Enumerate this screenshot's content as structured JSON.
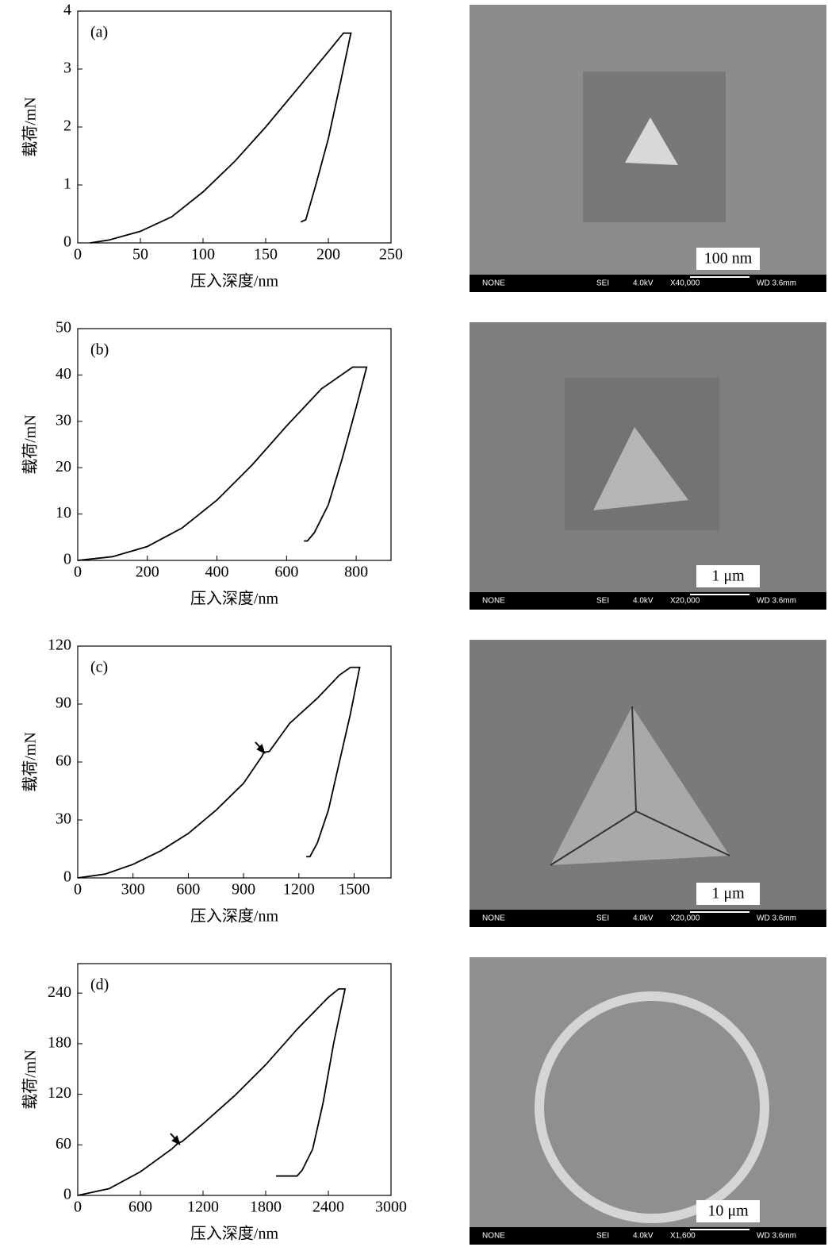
{
  "chart_data": [
    {
      "type": "line",
      "panel_label": "(a)",
      "y_label": "载荷/mN",
      "x_label": "压入深度/nm",
      "color": "#000000",
      "x": [
        10,
        25,
        50,
        75,
        100,
        125,
        150,
        175,
        200,
        212,
        218,
        210,
        200,
        190,
        182,
        178
      ],
      "values": [
        0,
        0.05,
        0.2,
        0.45,
        0.88,
        1.4,
        2.0,
        2.65,
        3.3,
        3.62,
        3.62,
        2.8,
        1.8,
        1.0,
        0.4,
        0.36
      ],
      "xlim": [
        0,
        250
      ],
      "xticks": [
        0,
        50,
        100,
        150,
        200,
        250
      ],
      "ylim": [
        0,
        4
      ],
      "yticks": [
        0,
        1,
        2,
        3,
        4
      ]
    },
    {
      "type": "line",
      "panel_label": "(b)",
      "y_label": "载荷/mN",
      "x_label": "压入深度/nm",
      "color": "#000000",
      "x": [
        0,
        100,
        200,
        300,
        400,
        500,
        600,
        700,
        790,
        830,
        800,
        760,
        720,
        680,
        660,
        650
      ],
      "values": [
        0,
        0.8,
        3,
        7,
        13,
        20.5,
        29,
        37,
        41.7,
        41.7,
        33,
        22,
        12,
        6,
        4.2,
        4.2
      ],
      "xlim": [
        0,
        900
      ],
      "xticks": [
        0,
        200,
        400,
        600,
        800
      ],
      "ylim": [
        0,
        50
      ],
      "yticks": [
        0,
        10,
        20,
        30,
        40,
        50
      ]
    },
    {
      "type": "line",
      "panel_label": "(c)",
      "y_label": "载荷/mN",
      "x_label": "压入深度/nm",
      "color": "#000000",
      "x": [
        0,
        150,
        300,
        450,
        600,
        750,
        900,
        1000,
        1010,
        1040,
        1150,
        1300,
        1420,
        1480,
        1530,
        1480,
        1420,
        1360,
        1300,
        1260,
        1240
      ],
      "values": [
        0,
        2,
        7,
        14,
        23,
        35,
        49,
        63,
        65,
        65.5,
        80,
        93,
        105,
        109,
        109,
        85,
        60,
        35,
        18,
        11,
        11
      ],
      "xlim": [
        0,
        1700
      ],
      "xticks": [
        0,
        300,
        600,
        900,
        1200,
        1500
      ],
      "ylim": [
        0,
        120
      ],
      "yticks": [
        0,
        30,
        60,
        90,
        120
      ]
    },
    {
      "type": "line",
      "panel_label": "(d)",
      "y_label": "载荷/mN",
      "x_label": "压入深度/nm",
      "color": "#000000",
      "x": [
        0,
        300,
        600,
        900,
        960,
        1000,
        1200,
        1500,
        1800,
        2100,
        2400,
        2500,
        2560,
        2450,
        2350,
        2250,
        2150,
        2100,
        1900
      ],
      "values": [
        0,
        8,
        28,
        55,
        62,
        64,
        85,
        118,
        155,
        197,
        235,
        245,
        245,
        180,
        110,
        55,
        30,
        23,
        23
      ],
      "xlim": [
        0,
        3000
      ],
      "xticks": [
        0,
        600,
        1200,
        1800,
        2400,
        3000
      ],
      "ylim": [
        0,
        275
      ],
      "yticks": [
        0,
        60,
        120,
        180,
        240
      ]
    }
  ],
  "images": [
    {
      "scale": "100 nm",
      "info": [
        "NONE",
        "SEI",
        "4.0kV",
        "X40,000",
        "WD 3.6mm"
      ]
    },
    {
      "scale": "1 μm",
      "info": [
        "NONE",
        "SEI",
        "4.0kV",
        "X20,000",
        "WD 3.6mm"
      ]
    },
    {
      "scale": "1 μm",
      "info": [
        "NONE",
        "SEI",
        "4.0kV",
        "X20,000",
        "WD 3.6mm"
      ]
    },
    {
      "scale": "10 μm",
      "info": [
        "NONE",
        "SEI",
        "4.0kV",
        "X1,600",
        "WD 3.6mm"
      ]
    }
  ]
}
